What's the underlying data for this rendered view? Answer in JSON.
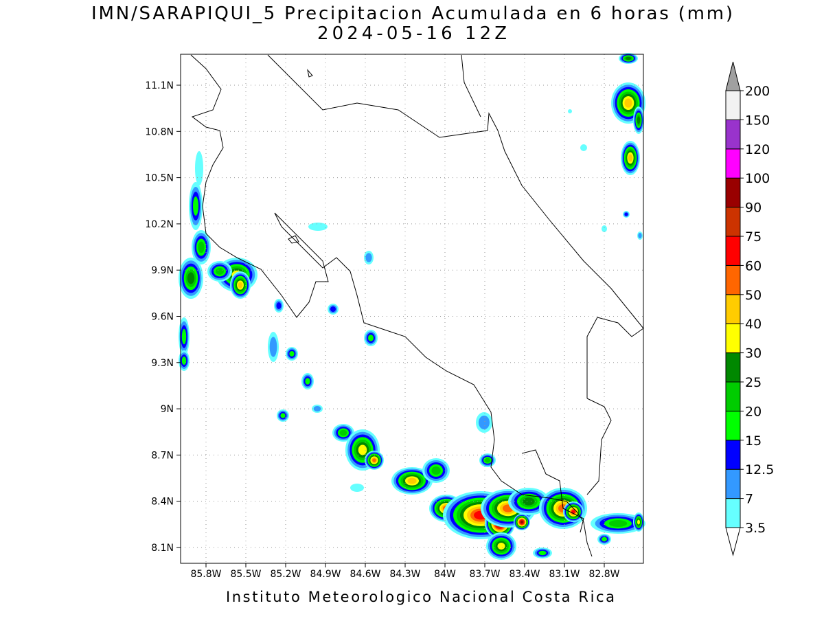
{
  "header": {
    "title": "IMN/SARAPIQUI_5 Precipitacion Acumulada en 6 horas (mm)",
    "subtitle": "2024-05-16 12Z"
  },
  "map": {
    "lon_ticks": [
      "85.8W",
      "85.5W",
      "85.2W",
      "84.9W",
      "84.6W",
      "84.3W",
      "84W",
      "83.7W",
      "83.4W",
      "83.1W",
      "82.8W"
    ],
    "lat_ticks": [
      "11.1N",
      "10.8N",
      "10.5N",
      "10.2N",
      "9.9N",
      "9.6N",
      "9.3N",
      "9N",
      "8.7N",
      "8.4N",
      "8.1N"
    ]
  },
  "colorbar": {
    "levels": [
      3.5,
      7,
      12.5,
      15,
      20,
      25,
      30,
      40,
      50,
      60,
      75,
      90,
      100,
      120,
      150,
      200
    ],
    "colors": [
      "#ffffff",
      "#66ffff",
      "#3399ff",
      "#0000ff",
      "#00ff00",
      "#00cc00",
      "#008800",
      "#ffff00",
      "#ffcc00",
      "#ff6600",
      "#ff0000",
      "#cc3300",
      "#990000",
      "#ff00ff",
      "#9933cc",
      "#f2f2f2",
      "#a0a0a0"
    ]
  },
  "footer": "Instituto Meteorologico Nacional Costa Rica"
}
